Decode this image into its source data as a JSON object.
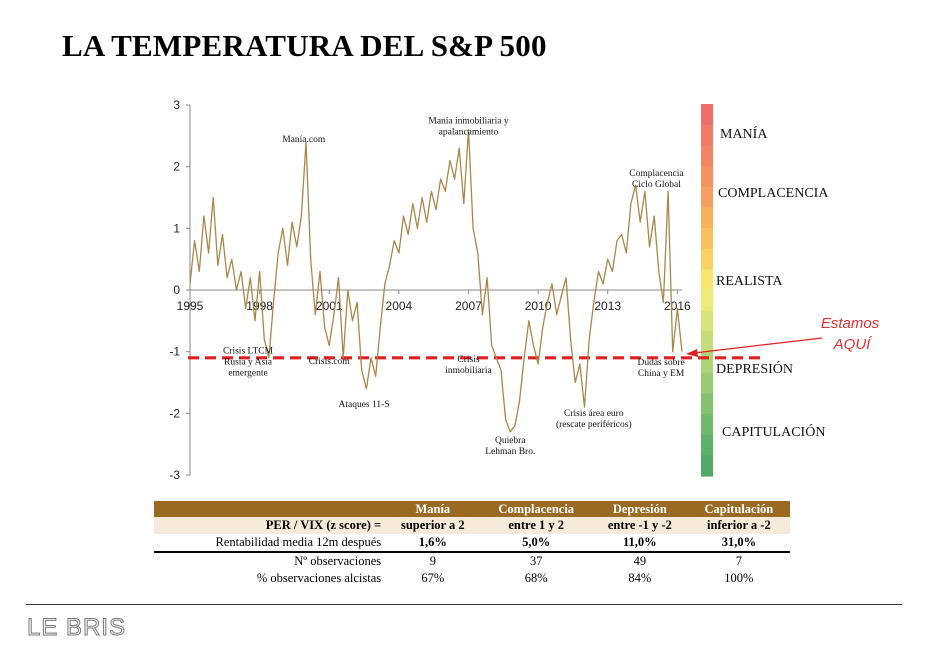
{
  "title": "LA TEMPERATURA DEL S&P 500",
  "chart_data": {
    "type": "line",
    "x_labels": [
      "1995",
      "1998",
      "2001",
      "2004",
      "2007",
      "2010",
      "2013",
      "2016"
    ],
    "y_ticks": [
      "3",
      "2",
      "1",
      "0",
      "-1",
      "-2",
      "-3"
    ],
    "ylim": [
      -3,
      3
    ],
    "xlim": [
      1995,
      2016.2
    ],
    "line_color": "#a9864a",
    "threshold": -1.1,
    "threshold_color": "#e02020",
    "series": [
      {
        "x": [
          1995.0,
          1995.2,
          1995.4,
          1995.6,
          1995.8,
          1996.0,
          1996.2,
          1996.4,
          1996.6,
          1996.8,
          1997.0,
          1997.2,
          1997.4,
          1997.6,
          1997.8,
          1998.0,
          1998.2,
          1998.4,
          1998.6,
          1998.8,
          1999.0,
          1999.2,
          1999.4,
          1999.6,
          1999.8,
          2000.0,
          2000.2,
          2000.4,
          2000.6,
          2000.8,
          2001.0,
          2001.2,
          2001.4,
          2001.6,
          2001.8,
          2002.0,
          2002.2,
          2002.4,
          2002.6,
          2002.8,
          2003.0,
          2003.2,
          2003.4,
          2003.6,
          2003.8,
          2004.0,
          2004.2,
          2004.4,
          2004.6,
          2004.8,
          2005.0,
          2005.2,
          2005.4,
          2005.6,
          2005.8,
          2006.0,
          2006.2,
          2006.4,
          2006.6,
          2006.8,
          2007.0,
          2007.2,
          2007.4,
          2007.6,
          2007.8,
          2008.0,
          2008.2,
          2008.4,
          2008.6,
          2008.8,
          2009.0,
          2009.2,
          2009.4,
          2009.6,
          2009.8,
          2010.0,
          2010.2,
          2010.4,
          2010.6,
          2010.8,
          2011.0,
          2011.2,
          2011.4,
          2011.6,
          2011.8,
          2012.0,
          2012.2,
          2012.4,
          2012.6,
          2012.8,
          2013.0,
          2013.2,
          2013.4,
          2013.6,
          2013.8,
          2014.0,
          2014.2,
          2014.4,
          2014.6,
          2014.8,
          2015.0,
          2015.2,
          2015.4,
          2015.6,
          2015.8,
          2016.0,
          2016.2
        ],
        "y": [
          0.1,
          0.8,
          0.3,
          1.2,
          0.6,
          1.5,
          0.4,
          0.9,
          0.2,
          0.5,
          0.0,
          0.3,
          -0.3,
          0.2,
          -0.5,
          0.3,
          -0.8,
          -1.1,
          -0.2,
          0.6,
          1.0,
          0.4,
          1.1,
          0.7,
          1.2,
          2.4,
          0.5,
          -0.4,
          0.3,
          -0.6,
          -0.9,
          -0.4,
          0.2,
          -1.1,
          0.0,
          -0.5,
          -0.2,
          -1.3,
          -1.6,
          -1.1,
          -1.4,
          -0.6,
          0.1,
          0.4,
          0.8,
          0.6,
          1.2,
          0.9,
          1.4,
          1.0,
          1.5,
          1.1,
          1.6,
          1.3,
          1.8,
          1.6,
          2.1,
          1.8,
          2.3,
          1.4,
          2.6,
          1.0,
          0.6,
          -0.4,
          0.2,
          -0.9,
          -1.1,
          -1.3,
          -2.1,
          -2.3,
          -2.2,
          -1.8,
          -1.1,
          -0.5,
          -0.9,
          -1.2,
          -0.6,
          -0.2,
          0.1,
          -0.4,
          -0.1,
          0.2,
          -0.8,
          -1.5,
          -1.2,
          -1.9,
          -0.8,
          -0.2,
          0.3,
          0.1,
          0.5,
          0.3,
          0.8,
          0.9,
          0.6,
          1.4,
          1.7,
          1.1,
          1.6,
          0.7,
          1.2,
          0.3,
          -0.2,
          1.6,
          -1.0,
          -0.3,
          -1.0
        ]
      }
    ],
    "annotations": [
      {
        "lines": [
          "Manía.com"
        ],
        "x": 1999.9,
        "y": 2.4
      },
      {
        "lines": [
          "Manía inmobiliaria y",
          "apalancamiento"
        ],
        "x": 2007.0,
        "y": 2.7
      },
      {
        "lines": [
          "Complacencia",
          "Ciclo Global"
        ],
        "x": 2015.1,
        "y": 1.85
      },
      {
        "lines": [
          "Crisis LTCM",
          "Rusia y Asia",
          "emergente"
        ],
        "x": 1997.5,
        "y": -1.03
      },
      {
        "lines": [
          "Crisis.com"
        ],
        "x": 2001.0,
        "y": -1.2
      },
      {
        "lines": [
          "Ataques 11-S"
        ],
        "x": 2002.5,
        "y": -1.9
      },
      {
        "lines": [
          "Crisis",
          "inmobiliaria"
        ],
        "x": 2007.0,
        "y": -1.17
      },
      {
        "lines": [
          "Quiebra",
          "Lehman Bro."
        ],
        "x": 2008.8,
        "y": -2.48
      },
      {
        "lines": [
          "Crisis área euro",
          "(rescate periféricos)"
        ],
        "x": 2012.4,
        "y": -2.04
      },
      {
        "lines": [
          "Dudas sobre",
          "China y EM"
        ],
        "x": 2015.3,
        "y": -1.22
      }
    ],
    "zones": [
      "MANÍA",
      "COMPLACENCIA",
      "REALISTA",
      "DEPRESIÓN",
      "CAPITULACIÓN"
    ],
    "colorbar": [
      "#f06b6b",
      "#f27868",
      "#f38566",
      "#f49263",
      "#f5a060",
      "#f6b05e",
      "#f7c05e",
      "#f8d364",
      "#f5e66e",
      "#eaeb78",
      "#d8e47a",
      "#c4dc7a",
      "#aed478",
      "#98cb74",
      "#84c270",
      "#70b96c",
      "#5fb168",
      "#50a964"
    ],
    "pointer_text": [
      "Estamos",
      "AQUÍ"
    ]
  },
  "table": {
    "header_row1": [
      "",
      "Manía",
      "Complacencia",
      "Depresión",
      "Capitulación"
    ],
    "header_row2": [
      "PER / VIX (z score) =",
      "superior a 2",
      "entre 1 y 2",
      "entre -1 y -2",
      "inferior a -2"
    ],
    "rows": [
      [
        "Rentabilidad media 12m después",
        "1,6%",
        "5,0%",
        "11,0%",
        "31,0%"
      ],
      [
        "Nº observaciones",
        "9",
        "37",
        "49",
        "7"
      ],
      [
        "% observaciones alcistas",
        "67%",
        "68%",
        "84%",
        "100%"
      ]
    ]
  },
  "logo_text": "LE BRIS"
}
